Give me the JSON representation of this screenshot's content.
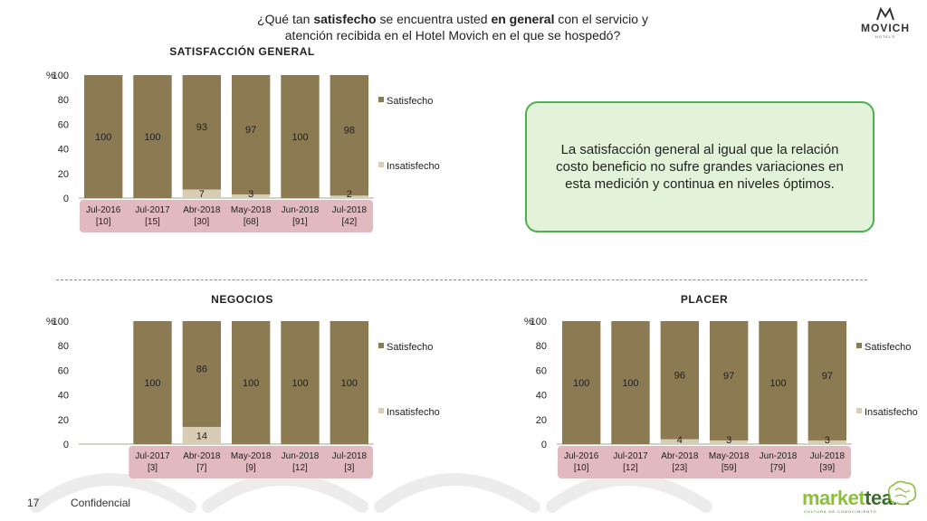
{
  "header": {
    "question_parts": [
      {
        "text": "¿Qué tan ",
        "bold": false
      },
      {
        "text": "satisfecho",
        "bold": true
      },
      {
        "text": " se encuentra usted ",
        "bold": false
      },
      {
        "text": "en general",
        "bold": true
      },
      {
        "text": " con el servicio y",
        "bold": false
      }
    ],
    "question_line2": "atención recibida en el Hotel Movich en el que se hospedó?"
  },
  "brand": {
    "name": "MOVICH",
    "sub": "HOTELS",
    "icon": "movich-m-logo"
  },
  "note": "La satisfacción general al igual que la relación costo beneficio no sufre grandes variaciones en esta medición y continua en niveles óptimos.",
  "footer": {
    "page": "17",
    "label": "Confidencial",
    "vendor_a": "market",
    "vendor_b": "team",
    "vendor_sub": "CULTURA DE CONOCIMIENTO"
  },
  "colors": {
    "satisfecho": "#8b7a52",
    "insatisfecho": "#d8ccb4",
    "axis_band": "#e3b9c0",
    "note_border": "#4caf50",
    "note_bg": "#e2f3d9"
  },
  "chart_data": [
    {
      "type": "bar",
      "stacked": true,
      "title": "SATISFACCIÓN GENERAL",
      "ylabel": "%",
      "ylim": [
        0,
        100
      ],
      "yticks": [
        0,
        20,
        40,
        60,
        80,
        100
      ],
      "legend_position": "right",
      "categories": [
        "Jul-2016",
        "Jul-2017",
        "Abr-2018",
        "May-2018",
        "Jun-2018",
        "Jul-2018"
      ],
      "bases": [
        "[10]",
        "[15]",
        "[30]",
        "[68]",
        "[91]",
        "[42]"
      ],
      "series": [
        {
          "name": "Insatisfecho",
          "values": [
            0,
            0,
            7,
            3,
            0,
            2
          ],
          "labels": [
            "",
            "",
            "7",
            "3",
            "",
            "2"
          ]
        },
        {
          "name": "Satisfecho",
          "values": [
            100,
            100,
            93,
            97,
            100,
            98
          ],
          "labels": [
            "100",
            "100",
            "93",
            "97",
            "100",
            "98"
          ]
        }
      ]
    },
    {
      "type": "bar",
      "stacked": true,
      "title": "NEGOCIOS",
      "ylabel": "%",
      "ylim": [
        0,
        100
      ],
      "yticks": [
        0,
        20,
        40,
        60,
        80,
        100
      ],
      "legend_position": "right",
      "categories": [
        "",
        "Jul-2017",
        "Abr-2018",
        "May-2018",
        "Jun-2018",
        "Jul-2018"
      ],
      "bases": [
        "",
        "[3]",
        "[7]",
        "[9]",
        "[12]",
        "[3]"
      ],
      "series": [
        {
          "name": "Insatisfecho",
          "values": [
            0,
            0,
            14,
            0,
            0,
            0
          ],
          "labels": [
            "",
            "",
            "14",
            "",
            "",
            ""
          ]
        },
        {
          "name": "Satisfecho",
          "values": [
            0,
            100,
            86,
            100,
            100,
            100
          ],
          "labels": [
            "",
            "100",
            "86",
            "100",
            "100",
            "100"
          ]
        }
      ]
    },
    {
      "type": "bar",
      "stacked": true,
      "title": "PLACER",
      "ylabel": "%",
      "ylim": [
        0,
        100
      ],
      "yticks": [
        0,
        20,
        40,
        60,
        80,
        100
      ],
      "legend_position": "right",
      "categories": [
        "Jul-2016",
        "Jul-2017",
        "Abr-2018",
        "May-2018",
        "Jun-2018",
        "Jul-2018"
      ],
      "bases": [
        "[10]",
        "[12]",
        "[23]",
        "[59]",
        "[79]",
        "[39]"
      ],
      "series": [
        {
          "name": "Insatisfecho",
          "values": [
            0,
            0,
            4,
            3,
            0,
            3
          ],
          "labels": [
            "",
            "",
            "4",
            "3",
            "",
            "3"
          ]
        },
        {
          "name": "Satisfecho",
          "values": [
            100,
            100,
            96,
            97,
            100,
            97
          ],
          "labels": [
            "100",
            "100",
            "96",
            "97",
            "100",
            "97"
          ]
        }
      ]
    }
  ]
}
